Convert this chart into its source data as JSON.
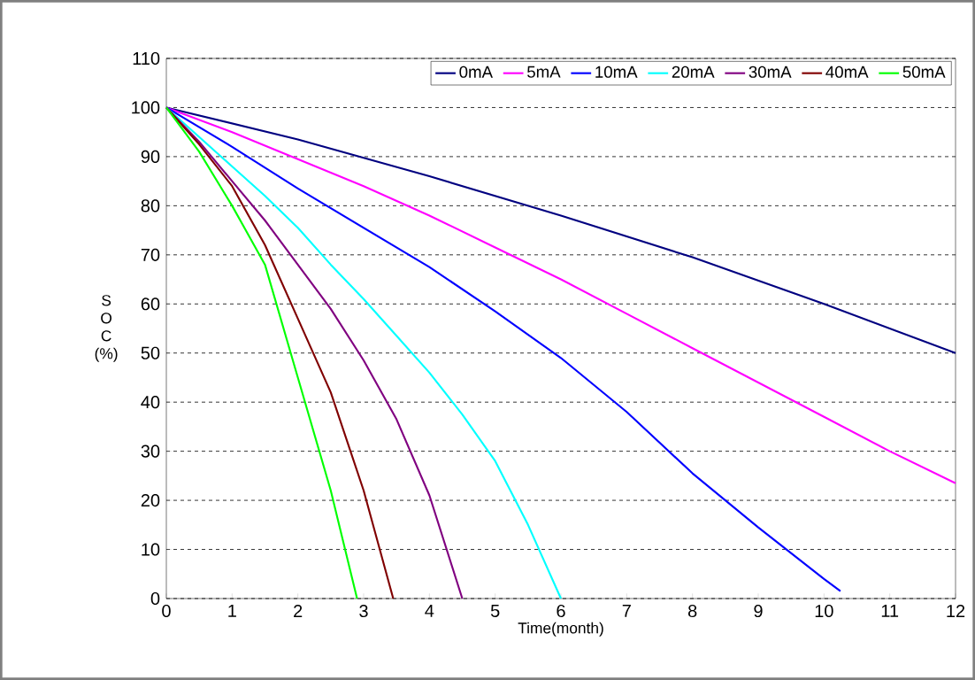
{
  "chart_data": {
    "type": "line",
    "xlabel": "Time(month)",
    "ylabel": "S O C (%)",
    "xlim": [
      0,
      12
    ],
    "ylim": [
      0,
      110
    ],
    "xticks": [
      0,
      1,
      2,
      3,
      4,
      5,
      6,
      7,
      8,
      9,
      10,
      11,
      12
    ],
    "yticks": [
      0,
      10,
      20,
      30,
      40,
      50,
      60,
      70,
      80,
      90,
      100,
      110
    ],
    "grid": "y",
    "legend": "top right",
    "marker": "none",
    "line_style": "solid",
    "series": [
      {
        "name": "0mA",
        "color": "#000080",
        "x": [
          0,
          2,
          4,
          6,
          8,
          10,
          12
        ],
        "values": [
          100,
          93.5,
          86,
          78,
          69.5,
          60,
          50
        ]
      },
      {
        "name": "5mA",
        "color": "#ff00ff",
        "x": [
          0,
          1,
          2,
          3,
          4,
          5,
          6,
          7,
          8,
          9,
          10,
          11,
          12
        ],
        "values": [
          100,
          95,
          89.5,
          84,
          78,
          71.5,
          65,
          58,
          51,
          44,
          37,
          30,
          23.5
        ]
      },
      {
        "name": "10mA",
        "color": "#0000ff",
        "x": [
          0,
          1,
          2,
          3,
          4,
          5,
          6,
          7,
          8,
          9,
          10,
          10.25
        ],
        "values": [
          100,
          92,
          83.5,
          75.5,
          67.5,
          58.5,
          49,
          38,
          25.5,
          14.5,
          4,
          1.5
        ]
      },
      {
        "name": "20mA",
        "color": "#00ffff",
        "x": [
          0,
          0.5,
          1,
          1.5,
          2,
          2.5,
          3,
          3.5,
          4,
          4.5,
          5,
          5.5,
          6
        ],
        "values": [
          100,
          94,
          88,
          82,
          75.5,
          68,
          61,
          53.5,
          46,
          37.5,
          28,
          15,
          0
        ]
      },
      {
        "name": "30mA",
        "color": "#800080",
        "x": [
          0,
          0.5,
          1,
          1.5,
          2,
          2.5,
          3,
          3.5,
          4,
          4.5
        ],
        "values": [
          100,
          93,
          85,
          77,
          68,
          59,
          48.5,
          36.5,
          21,
          0
        ]
      },
      {
        "name": "40mA",
        "color": "#800000",
        "x": [
          0,
          0.5,
          1,
          1.5,
          2,
          2.5,
          3,
          3.45
        ],
        "values": [
          100,
          92.5,
          84,
          72,
          57,
          42,
          22,
          0
        ]
      },
      {
        "name": "50mA",
        "color": "#00ff00",
        "x": [
          0,
          0.5,
          1,
          1.5,
          2,
          2.5,
          2.9
        ],
        "values": [
          100,
          91,
          80,
          68,
          45,
          22,
          0
        ]
      }
    ]
  }
}
